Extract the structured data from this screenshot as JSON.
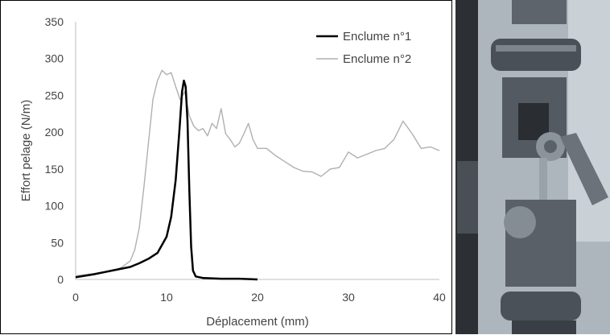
{
  "chart_data": {
    "type": "line",
    "title": "",
    "xlabel": "Déplacement (mm)",
    "ylabel": "Effort pelage (N/m)",
    "xlim": [
      0,
      40
    ],
    "ylim": [
      0,
      350
    ],
    "xticks": [
      "0",
      "10",
      "20",
      "30",
      "40"
    ],
    "yticks": [
      "0",
      "50",
      "100",
      "150",
      "200",
      "250",
      "300",
      "350"
    ],
    "grid": false,
    "legend": "top-right",
    "series": [
      {
        "name": "Enclume n°1",
        "color": "#000000",
        "x": [
          0,
          2,
          4,
          6,
          7,
          8,
          9,
          10,
          10.5,
          11,
          11.4,
          11.7,
          11.9,
          12.1,
          12.3,
          12.5,
          12.7,
          12.9,
          13.2,
          14,
          16,
          18,
          20
        ],
        "y": [
          3,
          7,
          12,
          17,
          22,
          28,
          36,
          58,
          85,
          135,
          200,
          255,
          270,
          262,
          215,
          120,
          45,
          12,
          4,
          2,
          1,
          1,
          0
        ]
      },
      {
        "name": "Enclume n°2",
        "color": "#b0b0b0",
        "x": [
          0,
          2,
          4,
          5,
          6,
          6.5,
          7,
          7.5,
          8,
          8.5,
          9,
          9.5,
          10,
          10.5,
          11,
          11.5,
          12,
          12.5,
          13,
          13.5,
          14,
          14.5,
          15,
          15.5,
          16,
          16.5,
          17,
          17.5,
          18,
          18.5,
          19,
          19.5,
          20,
          21,
          22,
          23,
          24,
          25,
          26,
          27,
          28,
          29,
          30,
          31,
          32,
          33,
          34,
          35,
          36,
          37,
          38,
          39,
          40
        ],
        "y": [
          5,
          8,
          12,
          16,
          25,
          40,
          70,
          125,
          185,
          245,
          270,
          284,
          278,
          281,
          262,
          244,
          255,
          222,
          208,
          202,
          205,
          195,
          212,
          205,
          232,
          198,
          190,
          180,
          185,
          198,
          212,
          190,
          178,
          178,
          168,
          160,
          152,
          147,
          146,
          140,
          150,
          152,
          173,
          165,
          170,
          175,
          178,
          190,
          215,
          198,
          178,
          180,
          175
        ]
      }
    ]
  }
}
